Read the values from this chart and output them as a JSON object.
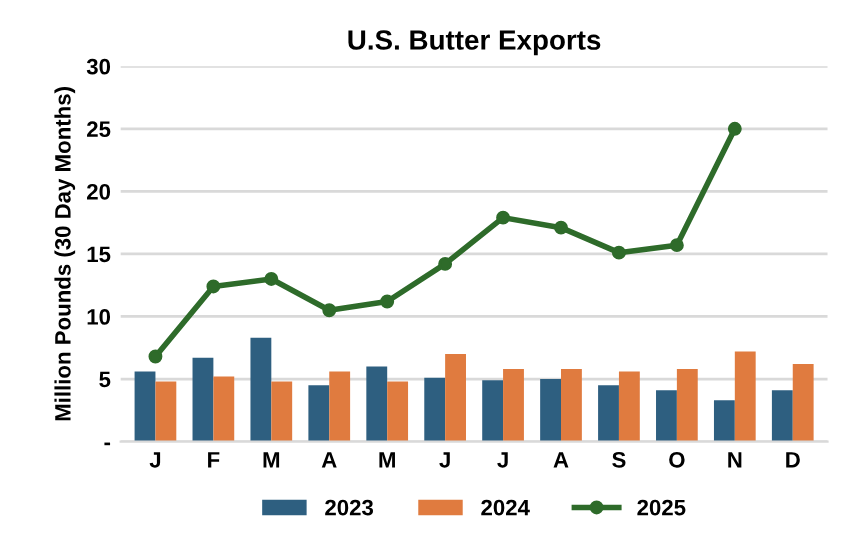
{
  "chart_data": {
    "type": "bar",
    "title": "U.S. Butter Exports",
    "ylabel": "Million Pounds (30 Day Months)",
    "categories": [
      "J",
      "F",
      "M",
      "A",
      "M",
      "J",
      "J",
      "A",
      "S",
      "O",
      "N",
      "D"
    ],
    "series": [
      {
        "name": "2023",
        "color": "#2e5f80",
        "values": [
          5.6,
          6.7,
          8.3,
          4.5,
          6.0,
          5.1,
          4.9,
          5.0,
          4.5,
          4.1,
          3.3,
          4.1
        ]
      },
      {
        "name": "2024",
        "color": "#e07b3f",
        "values": [
          4.8,
          5.2,
          4.8,
          5.6,
          4.8,
          7.0,
          5.8,
          5.8,
          5.6,
          5.8,
          7.2,
          6.2
        ]
      },
      {
        "name": "2025",
        "color": "#2e6b2a",
        "type": "line",
        "marker": "circle",
        "values": [
          6.8,
          12.4,
          13.0,
          10.5,
          11.2,
          14.2,
          17.9,
          17.1,
          15.1,
          15.7,
          25.0,
          null
        ]
      }
    ],
    "ylim": [
      0,
      30
    ],
    "yticks": [
      {
        "value": 0,
        "label": "-"
      },
      5,
      10,
      15,
      20,
      25,
      30
    ],
    "grid": "y",
    "legend": "bottom"
  }
}
